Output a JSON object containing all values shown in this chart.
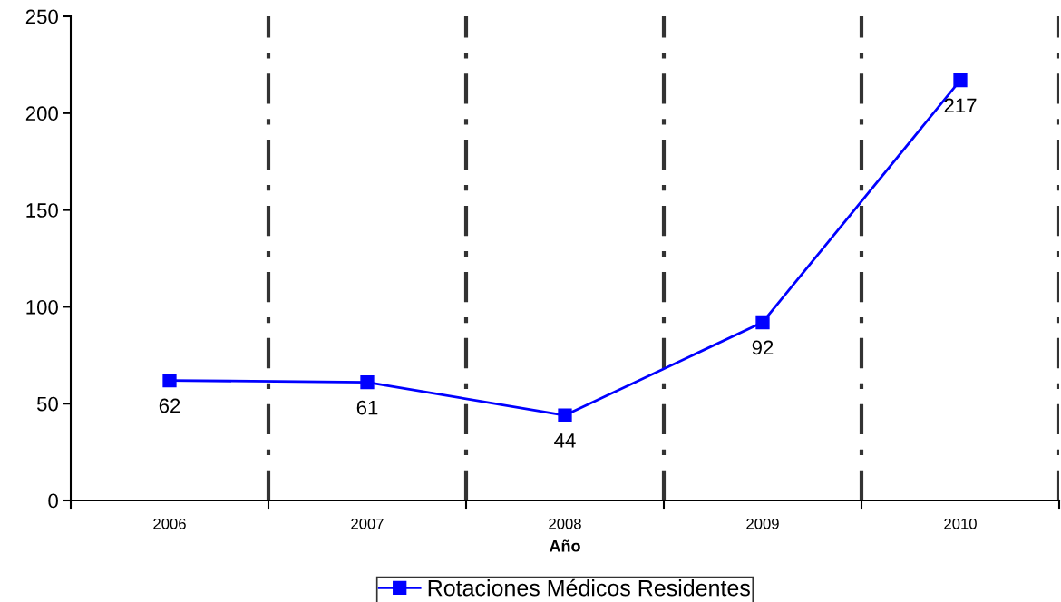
{
  "chart_data": {
    "type": "line",
    "xlabel": "Año",
    "categories": [
      "2006",
      "2007",
      "2008",
      "2009",
      "2010"
    ],
    "series": [
      {
        "name": "Rotaciones Médicos Residentes",
        "color": "#0000ff",
        "values": [
          62,
          61,
          44,
          92,
          217
        ]
      }
    ],
    "ylim": [
      0,
      250
    ],
    "yticks": [
      0,
      50,
      100,
      150,
      200,
      250
    ],
    "grid": "x",
    "legend": "bottom",
    "marker": "square",
    "line_style": "solid",
    "data_labels": true
  }
}
